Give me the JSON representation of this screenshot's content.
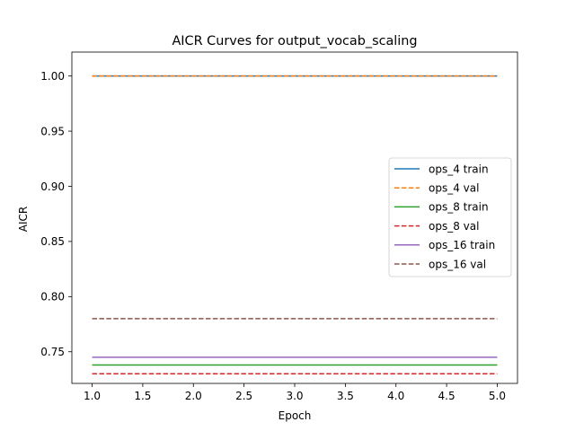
{
  "chart_data": {
    "type": "line",
    "title": "AICR Curves for output_vocab_scaling",
    "xlabel": "Epoch",
    "ylabel": "AICR",
    "xlim": [
      0.8,
      5.2
    ],
    "ylim": [
      0.7213,
      1.0217
    ],
    "x_ticks": [
      1.0,
      1.5,
      2.0,
      2.5,
      3.0,
      3.5,
      4.0,
      4.5,
      5.0
    ],
    "x_tick_labels": [
      "1.0",
      "1.5",
      "2.0",
      "2.5",
      "3.0",
      "3.5",
      "4.0",
      "4.5",
      "5.0"
    ],
    "y_ticks": [
      0.75,
      0.8,
      0.85,
      0.9,
      0.95,
      1.0
    ],
    "y_tick_labels": [
      "0.75",
      "0.80",
      "0.85",
      "0.90",
      "0.95",
      "1.00"
    ],
    "grid": false,
    "legend_position": "center-right",
    "x": [
      1,
      2,
      3,
      4,
      5
    ],
    "series": [
      {
        "name": "ops_4 train",
        "values": [
          1.0,
          1.0,
          1.0,
          1.0,
          1.0
        ],
        "color": "#1f77b4",
        "style": "solid"
      },
      {
        "name": "ops_4 val",
        "values": [
          1.0,
          1.0,
          1.0,
          1.0,
          1.0
        ],
        "color": "#ff7f0e",
        "style": "dashed"
      },
      {
        "name": "ops_8 train",
        "values": [
          0.738,
          0.738,
          0.738,
          0.738,
          0.738
        ],
        "color": "#2ca02c",
        "style": "solid"
      },
      {
        "name": "ops_8 val",
        "values": [
          0.73,
          0.73,
          0.73,
          0.73,
          0.73
        ],
        "color": "#d62728",
        "style": "dashed"
      },
      {
        "name": "ops_16 train",
        "values": [
          0.745,
          0.745,
          0.745,
          0.745,
          0.745
        ],
        "color": "#9467bd",
        "style": "solid"
      },
      {
        "name": "ops_16 val",
        "values": [
          0.78,
          0.78,
          0.78,
          0.78,
          0.78
        ],
        "color": "#8c564b",
        "style": "dashed"
      }
    ]
  }
}
